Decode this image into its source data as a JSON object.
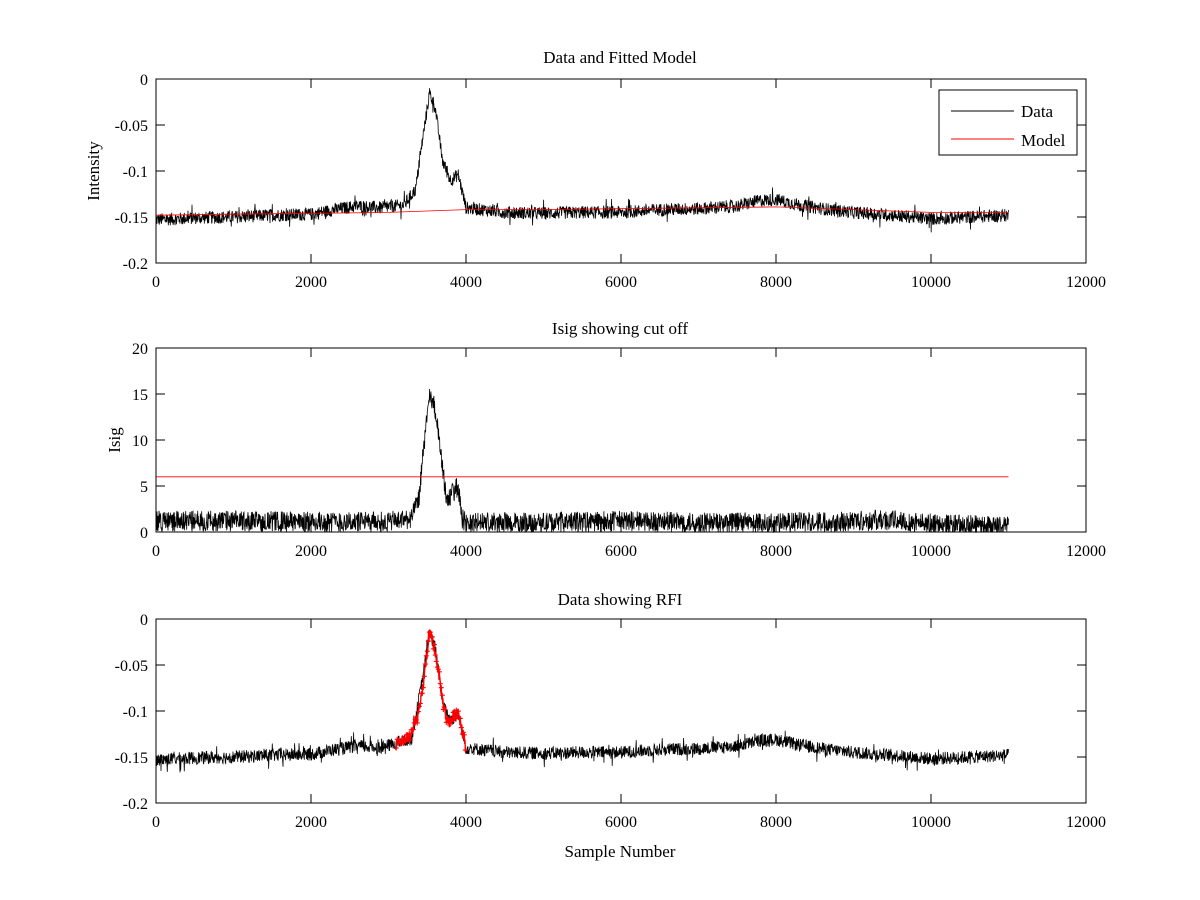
{
  "chart_data": [
    {
      "type": "line",
      "title": "Data and Fitted Model",
      "xlabel": "",
      "ylabel": "Intensity",
      "xlim": [
        0,
        12000
      ],
      "ylim": [
        -0.2,
        0
      ],
      "xticks": [
        0,
        2000,
        4000,
        6000,
        8000,
        10000,
        12000
      ],
      "xtick_labels": [
        "0",
        "2000",
        "4000",
        "6000",
        "8000",
        "10000",
        "12000"
      ],
      "yticks": [
        -0.2,
        -0.15,
        -0.1,
        -0.05,
        0
      ],
      "ytick_labels": [
        "-0.2",
        "-0.15",
        "-0.1",
        "-0.05",
        "0"
      ],
      "legend_position": "top-right",
      "grid": false,
      "series": [
        {
          "name": "Data",
          "color": "#000000",
          "x": [
            0,
            500,
            1000,
            1500,
            2000,
            2300,
            2600,
            2900,
            3200,
            3350,
            3450,
            3530,
            3600,
            3700,
            3800,
            3900,
            4000,
            4500,
            5000,
            5500,
            6000,
            6500,
            7000,
            7500,
            7800,
            8000,
            8300,
            8600,
            9000,
            9500,
            10000,
            10500,
            11000
          ],
          "values": [
            -0.153,
            -0.151,
            -0.15,
            -0.148,
            -0.147,
            -0.142,
            -0.138,
            -0.14,
            -0.137,
            -0.12,
            -0.06,
            -0.015,
            -0.03,
            -0.09,
            -0.11,
            -0.104,
            -0.14,
            -0.145,
            -0.146,
            -0.145,
            -0.145,
            -0.142,
            -0.141,
            -0.138,
            -0.132,
            -0.131,
            -0.137,
            -0.141,
            -0.145,
            -0.148,
            -0.152,
            -0.15,
            -0.148
          ],
          "noise_amplitude": 0.007
        },
        {
          "name": "Model",
          "color": "#ff0000",
          "x": [
            0,
            1000,
            2000,
            3000,
            4000,
            5000,
            6000,
            7000,
            8000,
            9000,
            10000,
            11000
          ],
          "values": [
            -0.148,
            -0.147,
            -0.146,
            -0.145,
            -0.142,
            -0.142,
            -0.141,
            -0.14,
            -0.139,
            -0.142,
            -0.145,
            -0.145
          ]
        }
      ]
    },
    {
      "type": "line",
      "title": "Isig showing cut off",
      "xlabel": "",
      "ylabel": "Isig",
      "xlim": [
        0,
        12000
      ],
      "ylim": [
        0,
        20
      ],
      "xticks": [
        0,
        2000,
        4000,
        6000,
        8000,
        10000,
        12000
      ],
      "xtick_labels": [
        "0",
        "2000",
        "4000",
        "6000",
        "8000",
        "10000",
        "12000"
      ],
      "yticks": [
        0,
        5,
        10,
        15,
        20
      ],
      "ytick_labels": [
        "0",
        "5",
        "10",
        "15",
        "20"
      ],
      "grid": false,
      "series": [
        {
          "color": "#000000",
          "x": [
            0,
            1000,
            2000,
            3000,
            3300,
            3400,
            3450,
            3530,
            3600,
            3700,
            3750,
            3800,
            3900,
            3950,
            4000,
            5000,
            6000,
            7000,
            8000,
            9000,
            9500,
            10000,
            11000
          ],
          "values": [
            1.2,
            1.2,
            1.1,
            1.1,
            1.5,
            4.0,
            9.0,
            14.5,
            13.5,
            7.0,
            3.0,
            4.0,
            5.0,
            1.5,
            1.0,
            1.0,
            1.2,
            1.0,
            1.0,
            1.2,
            1.3,
            0.9,
            0.6
          ],
          "noise_amplitude": 1.4
        },
        {
          "color": "#ff0000",
          "x": [
            0,
            11000
          ],
          "values": [
            6,
            6
          ]
        }
      ]
    },
    {
      "type": "line",
      "title": "Data showing RFI",
      "xlabel": "Sample Number",
      "ylabel": "",
      "xlim": [
        0,
        12000
      ],
      "ylim": [
        -0.2,
        0
      ],
      "xticks": [
        0,
        2000,
        4000,
        6000,
        8000,
        10000,
        12000
      ],
      "xtick_labels": [
        "0",
        "2000",
        "4000",
        "6000",
        "8000",
        "10000",
        "12000"
      ],
      "yticks": [
        -0.2,
        -0.15,
        -0.1,
        -0.05,
        0
      ],
      "ytick_labels": [
        "-0.2",
        "-0.15",
        "-0.1",
        "-0.05",
        "0"
      ],
      "grid": false,
      "series": [
        {
          "color": "#000000",
          "x": [
            0,
            500,
            1000,
            1500,
            2000,
            2300,
            2600,
            2900,
            3100,
            3300,
            3450,
            3530,
            3600,
            3700,
            3800,
            3900,
            4000,
            4500,
            5000,
            5500,
            6000,
            6500,
            7000,
            7500,
            7800,
            8000,
            8300,
            8600,
            9000,
            9500,
            10000,
            10500,
            11000
          ],
          "values": [
            -0.153,
            -0.151,
            -0.15,
            -0.148,
            -0.147,
            -0.142,
            -0.138,
            -0.14,
            -0.135,
            -0.13,
            -0.06,
            -0.015,
            -0.03,
            -0.09,
            -0.11,
            -0.104,
            -0.14,
            -0.145,
            -0.146,
            -0.145,
            -0.145,
            -0.142,
            -0.141,
            -0.138,
            -0.132,
            -0.131,
            -0.137,
            -0.141,
            -0.145,
            -0.148,
            -0.152,
            -0.15,
            -0.148
          ],
          "noise_amplitude": 0.007
        },
        {
          "color": "#ff0000",
          "marker": "+",
          "x": [
            3100,
            3200,
            3300,
            3400,
            3450,
            3500,
            3530,
            3560,
            3600,
            3650,
            3700,
            3750,
            3800,
            3850,
            3900,
            3950,
            4000
          ],
          "values": [
            -0.135,
            -0.132,
            -0.125,
            -0.1,
            -0.07,
            -0.035,
            -0.018,
            -0.02,
            -0.035,
            -0.06,
            -0.09,
            -0.11,
            -0.112,
            -0.105,
            -0.1,
            -0.12,
            -0.14
          ],
          "noise_amplitude": 0.006
        }
      ]
    }
  ]
}
